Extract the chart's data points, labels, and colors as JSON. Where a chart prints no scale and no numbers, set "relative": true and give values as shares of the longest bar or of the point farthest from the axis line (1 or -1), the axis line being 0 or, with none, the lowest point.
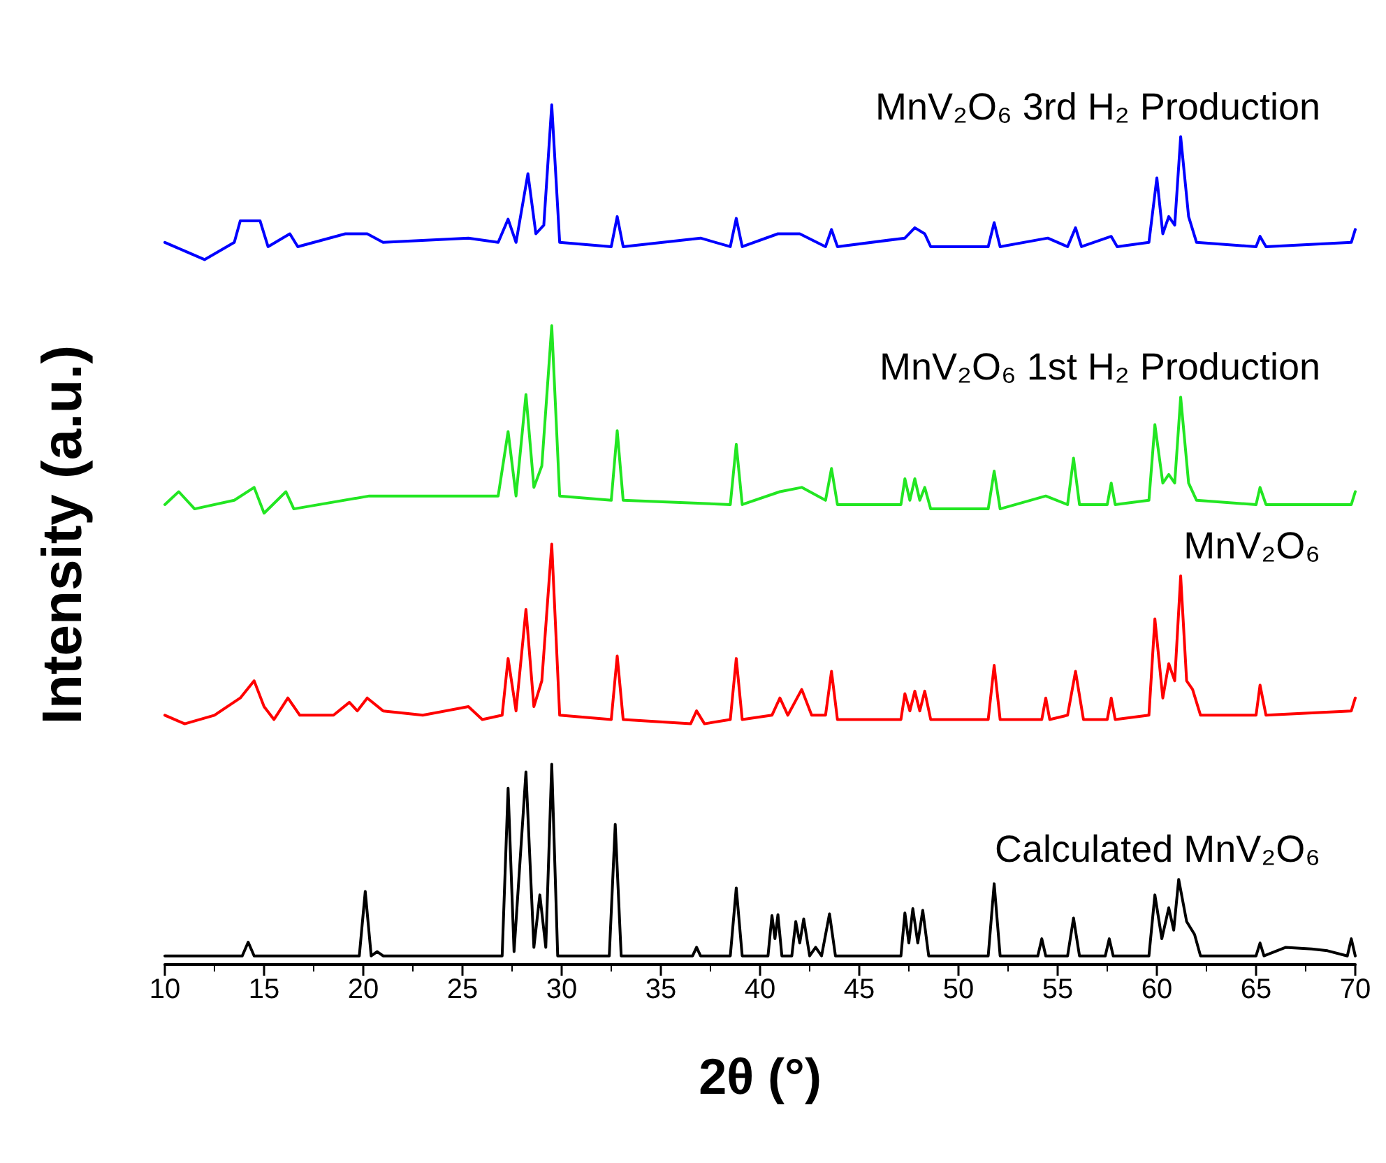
{
  "chart_data": {
    "type": "line",
    "relative": true,
    "xlabel": "2θ (°)",
    "ylabel": "Intensity (a.u.)",
    "xlim": [
      10,
      70
    ],
    "xticks": [
      10,
      15,
      20,
      25,
      30,
      35,
      40,
      45,
      50,
      55,
      60,
      65,
      70
    ],
    "grid": false,
    "legend": false,
    "marker": "none",
    "line_style": "solid",
    "series": [
      {
        "name": "Calculated MnV₂O₆",
        "color": "#000000",
        "x": [
          10,
          13.9,
          14.2,
          14.5,
          19.8,
          20.1,
          20.4,
          20.7,
          21.0,
          27.0,
          27.3,
          27.6,
          28.2,
          28.6,
          28.9,
          29.2,
          29.5,
          29.8,
          32.4,
          32.7,
          33.0,
          36.6,
          36.8,
          37.0,
          38.5,
          38.8,
          39.1,
          40.4,
          40.6,
          40.75,
          40.9,
          41.1,
          41.6,
          41.8,
          42.0,
          42.2,
          42.5,
          42.8,
          43.1,
          43.5,
          43.8,
          47.1,
          47.3,
          47.5,
          47.7,
          47.95,
          48.2,
          48.5,
          51.5,
          51.8,
          52.1,
          54.0,
          54.2,
          54.4,
          55.5,
          55.8,
          56.1,
          57.4,
          57.6,
          57.8,
          59.6,
          59.9,
          60.25,
          60.6,
          60.85,
          61.1,
          61.5,
          61.9,
          62.2,
          65.0,
          65.2,
          65.4,
          66.5,
          67.8,
          68.6,
          69.6,
          69.8,
          70
        ],
        "values": [
          0.01,
          0.01,
          0.026,
          0.01,
          0.01,
          0.085,
          0.01,
          0.015,
          0.01,
          0.01,
          0.205,
          0.015,
          0.224,
          0.02,
          0.081,
          0.02,
          0.233,
          0.01,
          0.01,
          0.163,
          0.01,
          0.01,
          0.02,
          0.01,
          0.01,
          0.089,
          0.01,
          0.01,
          0.057,
          0.03,
          0.058,
          0.01,
          0.01,
          0.05,
          0.025,
          0.053,
          0.01,
          0.02,
          0.01,
          0.059,
          0.01,
          0.01,
          0.06,
          0.025,
          0.065,
          0.025,
          0.063,
          0.01,
          0.01,
          0.094,
          0.01,
          0.01,
          0.03,
          0.01,
          0.01,
          0.054,
          0.01,
          0.01,
          0.03,
          0.01,
          0.01,
          0.081,
          0.03,
          0.066,
          0.04,
          0.099,
          0.05,
          0.035,
          0.01,
          0.01,
          0.025,
          0.01,
          0.02,
          0.018,
          0.016,
          0.01,
          0.03,
          0.01
        ]
      },
      {
        "name": "MnV₂O₆",
        "color": "#ff0000",
        "x": [
          10,
          11,
          12.5,
          13.8,
          14.5,
          15.0,
          15.5,
          16.2,
          16.8,
          18.5,
          19.3,
          19.7,
          20.2,
          21,
          23,
          25.3,
          26,
          27.0,
          27.3,
          27.7,
          28.2,
          28.6,
          29.0,
          29.5,
          29.9,
          32.5,
          32.8,
          33.1,
          36.5,
          36.8,
          37.2,
          38.5,
          38.8,
          39.1,
          40.6,
          41,
          41.4,
          42.1,
          42.6,
          43.3,
          43.6,
          43.9,
          47.1,
          47.3,
          47.55,
          47.8,
          48.05,
          48.3,
          48.6,
          51.5,
          51.8,
          52.1,
          54.2,
          54.4,
          54.6,
          55.5,
          55.9,
          56.3,
          57.5,
          57.7,
          57.9,
          59.6,
          59.9,
          60.3,
          60.6,
          60.9,
          61.2,
          61.5,
          61.8,
          62.2,
          65.0,
          65.2,
          65.5,
          69.8,
          70
        ],
        "values": [
          0.29,
          0.28,
          0.29,
          0.31,
          0.33,
          0.3,
          0.285,
          0.31,
          0.29,
          0.29,
          0.305,
          0.295,
          0.31,
          0.295,
          0.29,
          0.3,
          0.285,
          0.29,
          0.356,
          0.295,
          0.413,
          0.3,
          0.33,
          0.489,
          0.29,
          0.285,
          0.359,
          0.285,
          0.28,
          0.295,
          0.28,
          0.285,
          0.356,
          0.285,
          0.29,
          0.31,
          0.29,
          0.32,
          0.29,
          0.29,
          0.341,
          0.285,
          0.285,
          0.315,
          0.295,
          0.318,
          0.295,
          0.318,
          0.285,
          0.285,
          0.348,
          0.285,
          0.285,
          0.31,
          0.285,
          0.29,
          0.341,
          0.285,
          0.285,
          0.31,
          0.285,
          0.29,
          0.402,
          0.31,
          0.35,
          0.33,
          0.452,
          0.33,
          0.32,
          0.29,
          0.29,
          0.325,
          0.29,
          0.295,
          0.31
        ]
      },
      {
        "name": "MnV₂O₆ 1st H₂ Production",
        "color": "#22e622",
        "x": [
          10,
          10.7,
          11.5,
          13.5,
          14.5,
          15,
          16.1,
          16.5,
          20.3,
          24,
          26.8,
          27.3,
          27.7,
          28.2,
          28.6,
          29.0,
          29.5,
          29.9,
          32.5,
          32.8,
          33.1,
          38.5,
          38.8,
          39.1,
          41,
          42.1,
          43.3,
          43.6,
          43.9,
          47.1,
          47.3,
          47.55,
          47.8,
          48.05,
          48.3,
          48.6,
          51.5,
          51.8,
          52.1,
          54.4,
          55.5,
          55.8,
          56.1,
          57.5,
          57.7,
          57.9,
          59.6,
          59.9,
          60.3,
          60.6,
          60.9,
          61.2,
          61.6,
          62,
          65.0,
          65.2,
          65.5,
          69.8,
          70
        ],
        "values": [
          0.535,
          0.55,
          0.53,
          0.54,
          0.555,
          0.525,
          0.55,
          0.53,
          0.545,
          0.545,
          0.545,
          0.62,
          0.545,
          0.663,
          0.555,
          0.58,
          0.743,
          0.545,
          0.54,
          0.621,
          0.54,
          0.535,
          0.605,
          0.535,
          0.55,
          0.555,
          0.54,
          0.577,
          0.535,
          0.535,
          0.565,
          0.54,
          0.565,
          0.54,
          0.555,
          0.53,
          0.53,
          0.574,
          0.53,
          0.545,
          0.535,
          0.589,
          0.535,
          0.535,
          0.56,
          0.535,
          0.54,
          0.628,
          0.56,
          0.57,
          0.56,
          0.66,
          0.56,
          0.54,
          0.535,
          0.555,
          0.535,
          0.535,
          0.55
        ]
      },
      {
        "name": "MnV₂O₆ 3rd H₂ Production",
        "color": "#0000ff",
        "x": [
          10,
          11,
          12,
          13.5,
          13.8,
          14.3,
          14.8,
          15.2,
          16.3,
          16.7,
          19.1,
          20.2,
          21,
          25.3,
          26.8,
          27.3,
          27.7,
          28.3,
          28.7,
          29.1,
          29.5,
          29.9,
          32.5,
          32.8,
          33.1,
          37,
          38.5,
          38.8,
          39.1,
          40.9,
          42,
          43.3,
          43.6,
          43.9,
          47.3,
          47.8,
          48.3,
          48.6,
          51.5,
          51.8,
          52.1,
          54.5,
          55.5,
          55.9,
          56.2,
          57.7,
          58,
          59.6,
          60.0,
          60.3,
          60.6,
          60.9,
          61.2,
          61.6,
          62,
          65.0,
          65.2,
          65.5,
          69.8,
          70
        ],
        "values": [
          0.84,
          0.83,
          0.82,
          0.84,
          0.865,
          0.865,
          0.865,
          0.835,
          0.85,
          0.835,
          0.85,
          0.85,
          0.84,
          0.845,
          0.84,
          0.867,
          0.84,
          0.92,
          0.85,
          0.86,
          1.0,
          0.84,
          0.835,
          0.87,
          0.835,
          0.845,
          0.835,
          0.868,
          0.835,
          0.85,
          0.85,
          0.835,
          0.855,
          0.835,
          0.845,
          0.857,
          0.85,
          0.835,
          0.835,
          0.863,
          0.835,
          0.845,
          0.835,
          0.857,
          0.835,
          0.847,
          0.835,
          0.84,
          0.915,
          0.85,
          0.87,
          0.86,
          0.963,
          0.87,
          0.84,
          0.835,
          0.847,
          0.835,
          0.84,
          0.855
        ]
      }
    ]
  }
}
